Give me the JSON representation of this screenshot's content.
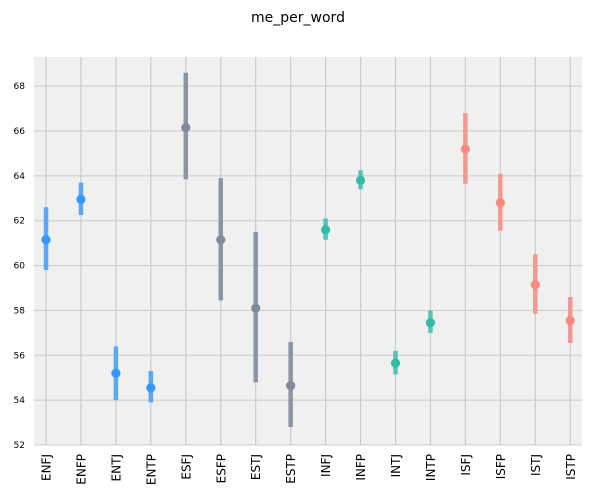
{
  "chart_data": {
    "type": "scatter",
    "title": "me_per_word",
    "xlabel": "",
    "ylabel": "",
    "ylim": [
      52,
      69.3
    ],
    "yticks": [
      52,
      54,
      56,
      58,
      60,
      62,
      64,
      66,
      68
    ],
    "grid": true,
    "categories": [
      "ENFJ",
      "ENFP",
      "ENTJ",
      "ENTP",
      "ESFJ",
      "ESFP",
      "ESTJ",
      "ESTP",
      "INFJ",
      "INFP",
      "INTJ",
      "INTP",
      "ISFJ",
      "ISFP",
      "ISTJ",
      "ISTP"
    ],
    "values": [
      61.15,
      62.95,
      55.2,
      54.55,
      66.15,
      61.15,
      58.1,
      54.65,
      61.6,
      63.8,
      55.65,
      57.45,
      65.2,
      62.8,
      59.15,
      57.55
    ],
    "ci_low": [
      59.8,
      62.25,
      54.0,
      53.9,
      63.85,
      58.45,
      54.8,
      52.8,
      61.15,
      63.4,
      55.15,
      57.0,
      63.65,
      61.55,
      57.85,
      56.55
    ],
    "ci_high": [
      62.6,
      63.7,
      56.4,
      55.3,
      68.6,
      63.9,
      61.5,
      56.6,
      62.1,
      64.25,
      56.2,
      58.0,
      66.8,
      64.1,
      60.5,
      58.6
    ],
    "colors": [
      "#3399ff",
      "#3399ff",
      "#3399ff",
      "#3399ff",
      "#808b99",
      "#808b99",
      "#808b99",
      "#808b99",
      "#33bba9",
      "#33bba9",
      "#33bba9",
      "#33bba9",
      "#f98a7f",
      "#f98a7f",
      "#f98a7f",
      "#f98a7f"
    ],
    "colors_light": [
      "#5aa8f5",
      "#5aa8f5",
      "#5aa8f5",
      "#5aa8f5",
      "#8a96a3",
      "#8a96a3",
      "#8a96a3",
      "#8a96a3",
      "#55c4b4",
      "#55c4b4",
      "#55c4b4",
      "#55c4b4",
      "#f49990",
      "#f49990",
      "#f49990",
      "#f49990"
    ],
    "background": "#f0f0f0",
    "grid_color": "#cbcbcb"
  }
}
